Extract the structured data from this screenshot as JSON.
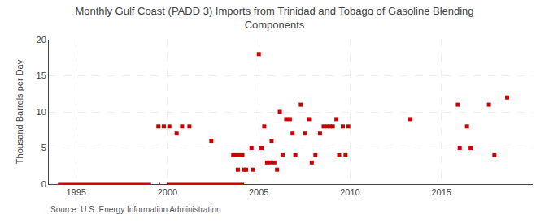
{
  "chart_data": {
    "type": "scatter",
    "title": "Monthly Gulf Coast (PADD 3) Imports from Trinidad and Tobago of Gasoline Blending\nComponents",
    "ylabel": "Thousand Barrels per Day",
    "annotations": [
      "Source: U.S. Energy Information Administration"
    ],
    "xlim": [
      1993.5,
      2020
    ],
    "ylim": [
      0,
      20
    ],
    "xticks": [
      1995,
      2000,
      2005,
      2010,
      2015
    ],
    "yticks": [
      0,
      5,
      10,
      15,
      20
    ],
    "grid": true,
    "series": [
      {
        "type": "scatter",
        "marker": "square",
        "color": "#cc0000",
        "x": [
          1999.5,
          1999.8,
          2000.1,
          2000.5,
          2000.8,
          2001.2,
          2002.4,
          2003.6,
          2003.75,
          2003.85,
          2003.95,
          2004.1,
          2004.2,
          2004.3,
          2004.6,
          2004.7,
          2005.0,
          2005.15,
          2005.3,
          2005.45,
          2005.6,
          2005.7,
          2005.85,
          2006.0,
          2006.15,
          2006.3,
          2006.5,
          2006.7,
          2006.85,
          2007.0,
          2007.3,
          2007.55,
          2007.75,
          2007.9,
          2008.1,
          2008.35,
          2008.55,
          2008.75,
          2008.9,
          2009.05,
          2009.25,
          2009.4,
          2009.6,
          2009.75,
          2009.9,
          2013.3,
          2015.9,
          2016.0,
          2016.4,
          2016.6,
          2017.6,
          2017.9,
          2018.6
        ],
        "values": [
          8,
          8,
          8,
          7,
          8,
          8,
          6,
          4,
          4,
          2,
          4,
          4,
          2,
          2,
          5,
          2,
          18,
          5,
          8,
          3,
          3,
          6,
          3,
          2,
          10,
          4,
          9,
          9,
          7,
          4,
          11,
          7,
          9,
          3,
          4,
          7,
          8,
          8,
          8,
          8,
          9,
          4,
          8,
          4,
          8,
          9,
          11,
          5,
          8,
          5,
          11,
          4,
          12
        ]
      },
      {
        "type": "line",
        "line_style": "solid",
        "color": "#cc0000",
        "x": [
          1994.0,
          1999.1,
          1999.1,
          1999.55,
          1999.6,
          1999.6,
          1999.95,
          2004.2
        ],
        "values": [
          0,
          0,
          null,
          0,
          0,
          null,
          0,
          0
        ]
      }
    ]
  }
}
